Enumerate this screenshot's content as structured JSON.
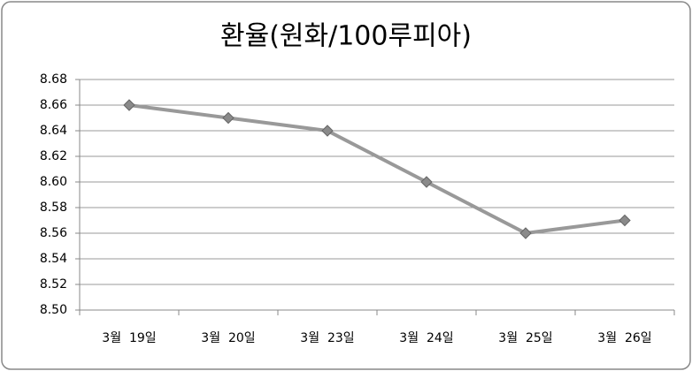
{
  "chart_data": {
    "type": "line",
    "title": "환율(원화/100루피아)",
    "categories": [
      "3월  19일",
      "3월  20일",
      "3월  23일",
      "3월  24일",
      "3월  25일",
      "3월  26일"
    ],
    "series": [
      {
        "name": "환율",
        "color": "#999999",
        "values": [
          8.66,
          8.65,
          8.64,
          8.6,
          8.56,
          8.57
        ]
      }
    ],
    "ylim": [
      8.5,
      8.68
    ],
    "yticks": [
      {
        "value": 8.5,
        "label": "8.50"
      },
      8.52,
      8.54,
      8.56,
      8.58,
      {
        "value": 8.6,
        "label": "8.60"
      },
      8.62,
      8.64,
      8.66,
      8.68
    ],
    "grid": true
  }
}
